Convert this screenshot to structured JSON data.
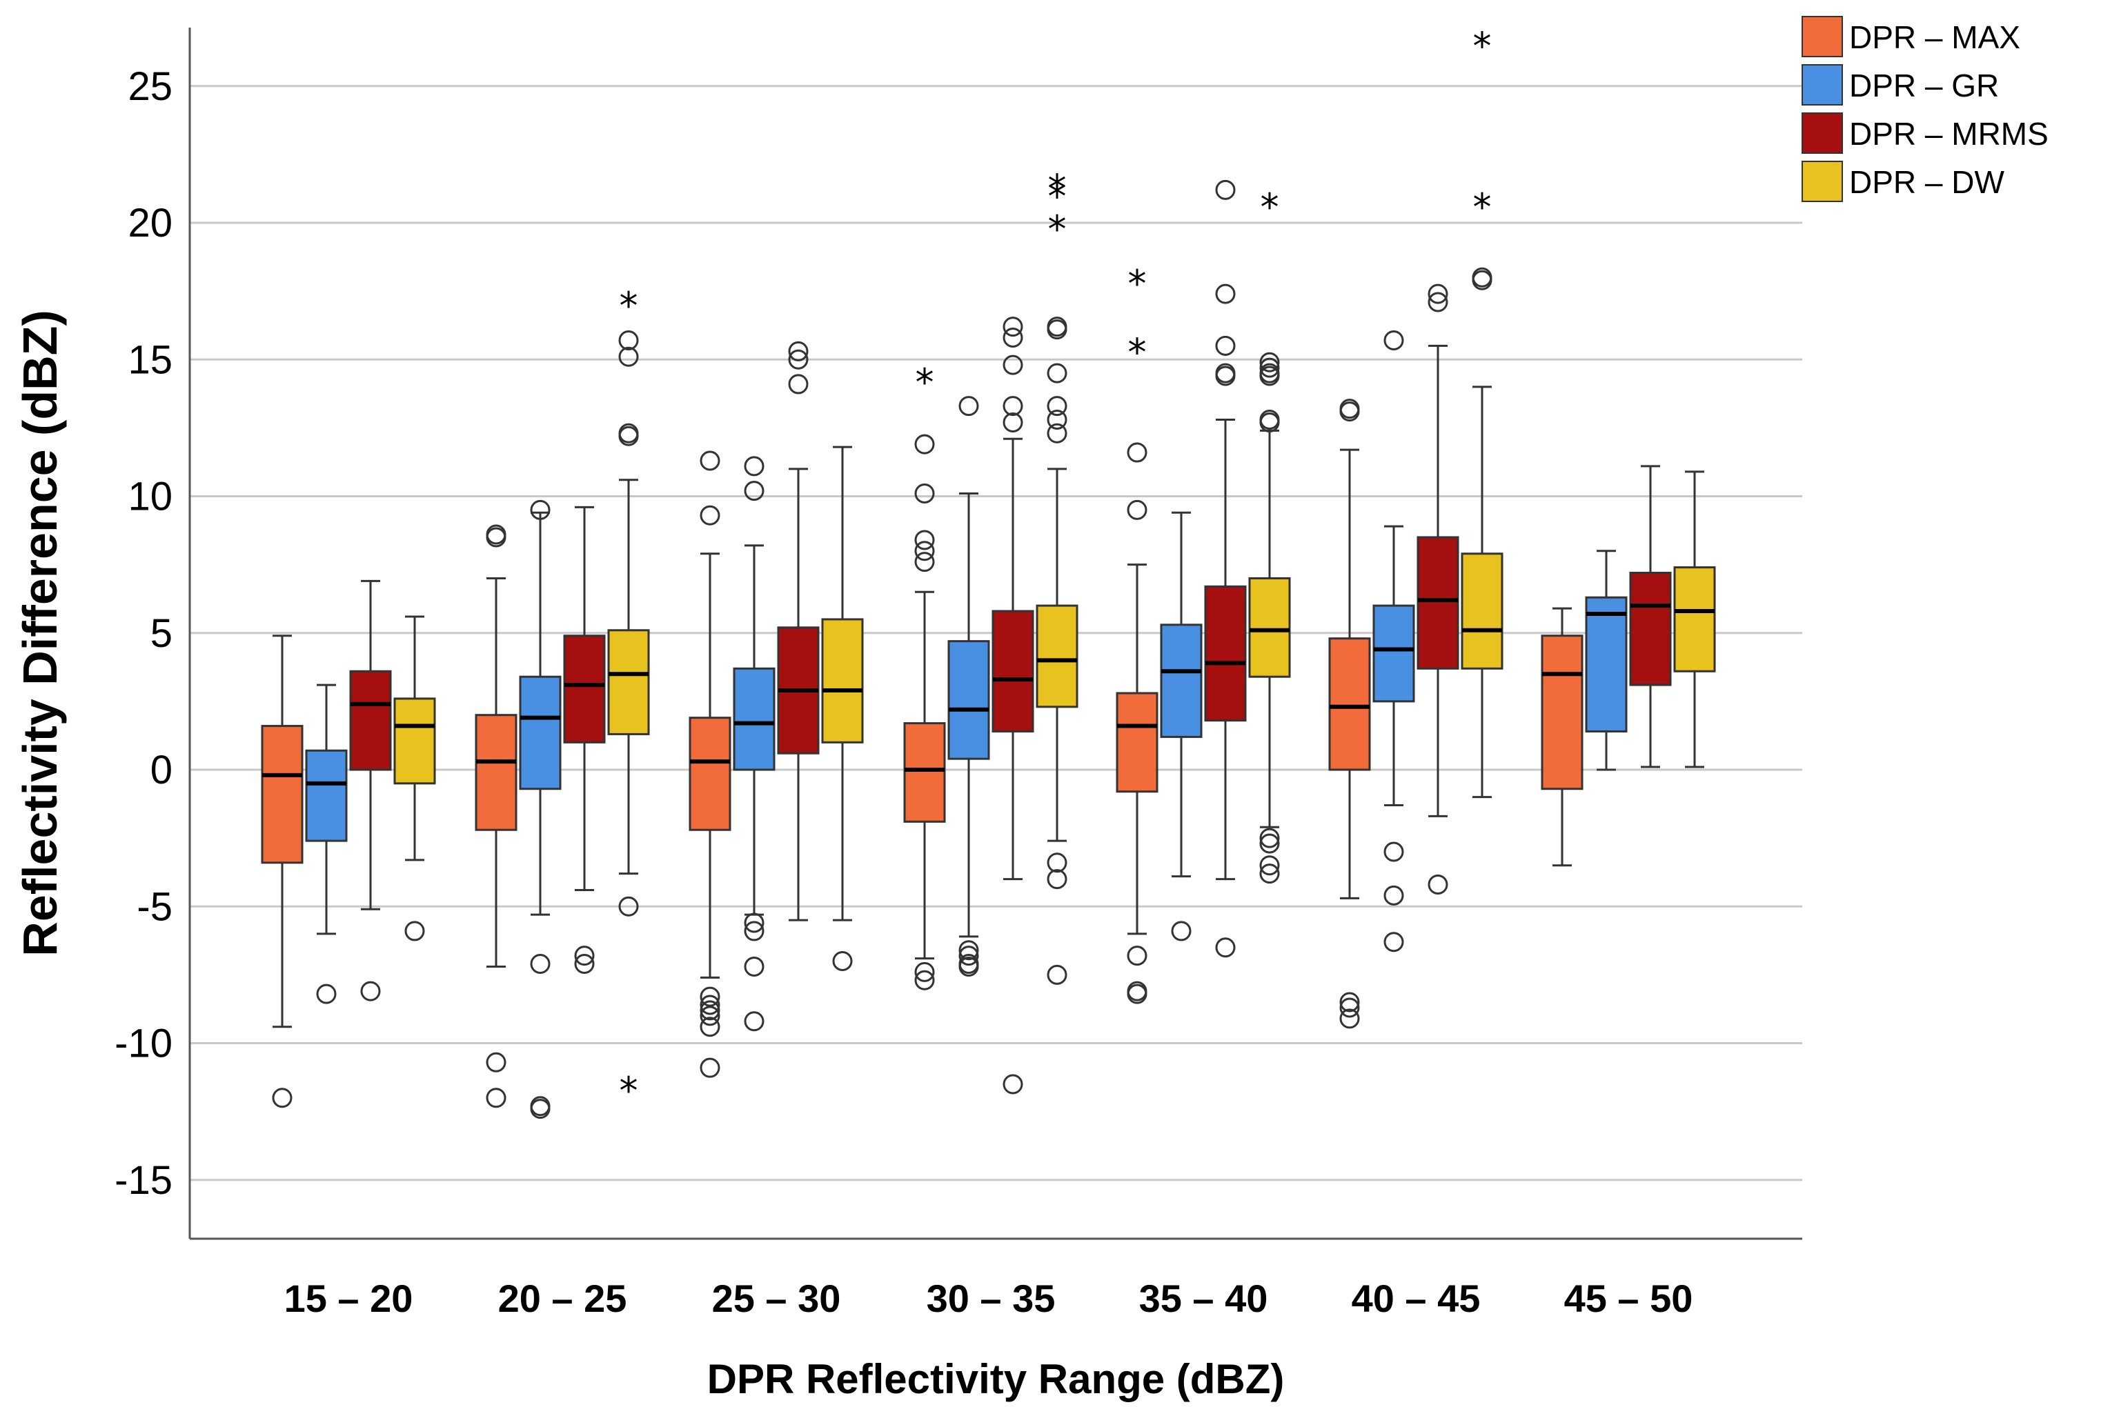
{
  "chart_data": {
    "type": "boxplot",
    "title": "",
    "xlabel": "DPR Reflectivity Range (dBZ)",
    "ylabel": "Reflectivity Difference (dBZ)",
    "ylim": [
      -17.2,
      27.2
    ],
    "yticks": [
      25,
      20,
      15,
      10,
      5,
      0,
      -5,
      -10,
      -15
    ],
    "ytick_labels": [
      "25",
      "20",
      "15",
      "10",
      "5",
      "0",
      "-5",
      "-10",
      "-15"
    ],
    "grid": "horizontal",
    "legend_position": "top-right",
    "categories": [
      "15 – 20",
      "20 – 25",
      "25 – 30",
      "30 – 35",
      "35 – 40",
      "40 – 45",
      "45 – 50"
    ],
    "series": [
      {
        "name": "DPR – MAX",
        "color": "#F26B3A",
        "boxes": [
          {
            "whisker_low": -9.4,
            "q1": -3.4,
            "median": -0.2,
            "q3": 1.6,
            "whisker_high": 4.9,
            "outliers": [
              -12
            ],
            "extremes": []
          },
          {
            "whisker_low": -7.2,
            "q1": -2.2,
            "median": 0.3,
            "q3": 2.0,
            "whisker_high": 7.0,
            "outliers": [
              8.6,
              8.5,
              -10.7,
              -12
            ],
            "extremes": []
          },
          {
            "whisker_low": -7.6,
            "q1": -2.2,
            "median": 0.3,
            "q3": 1.9,
            "whisker_high": 7.9,
            "outliers": [
              11.3,
              9.3,
              -8.3,
              -8.6,
              -8.8,
              -9.0,
              -9.4,
              -10.9
            ],
            "extremes": []
          },
          {
            "whisker_low": -6.9,
            "q1": -1.9,
            "median": 0.0,
            "q3": 1.7,
            "whisker_high": 6.5,
            "outliers": [
              11.9,
              10.1,
              8.4,
              8.0,
              7.6,
              -7.4,
              -7.7
            ],
            "extremes": [
              14.2
            ]
          },
          {
            "whisker_low": -6.0,
            "q1": -0.8,
            "median": 1.6,
            "q3": 2.8,
            "whisker_high": 7.5,
            "outliers": [
              11.6,
              9.5,
              -6.8,
              -8.1,
              -8.2
            ],
            "extremes": [
              17.8,
              15.3
            ]
          },
          {
            "whisker_low": -4.7,
            "q1": 0.0,
            "median": 2.3,
            "q3": 4.8,
            "whisker_high": 11.7,
            "outliers": [
              13.2,
              13.1,
              -8.5,
              -8.7,
              -9.1
            ],
            "extremes": []
          },
          {
            "whisker_low": -3.5,
            "q1": -0.7,
            "median": 3.5,
            "q3": 4.9,
            "whisker_high": 5.9,
            "outliers": [],
            "extremes": []
          }
        ]
      },
      {
        "name": "DPR – GR",
        "color": "#4A90E2",
        "boxes": [
          {
            "whisker_low": -6.0,
            "q1": -2.6,
            "median": -0.5,
            "q3": 0.7,
            "whisker_high": 3.1,
            "outliers": [
              -8.2
            ],
            "extremes": []
          },
          {
            "whisker_low": -5.3,
            "q1": -0.7,
            "median": 1.9,
            "q3": 3.4,
            "whisker_high": 9.4,
            "outliers": [
              9.5,
              -7.1,
              -12.3,
              -12.4
            ],
            "extremes": []
          },
          {
            "whisker_low": -5.3,
            "q1": 0.0,
            "median": 1.7,
            "q3": 3.7,
            "whisker_high": 8.2,
            "outliers": [
              11.1,
              10.2,
              -5.6,
              -5.9,
              -7.2,
              -9.2
            ],
            "extremes": []
          },
          {
            "whisker_low": -6.1,
            "q1": 0.4,
            "median": 2.2,
            "q3": 4.7,
            "whisker_high": 10.1,
            "outliers": [
              13.3,
              -6.6,
              -6.8,
              -7.1,
              -7.2
            ],
            "extremes": []
          },
          {
            "whisker_low": -3.9,
            "q1": 1.2,
            "median": 3.6,
            "q3": 5.3,
            "whisker_high": 9.4,
            "outliers": [
              -5.9
            ],
            "extremes": []
          },
          {
            "whisker_low": -1.3,
            "q1": 2.5,
            "median": 4.4,
            "q3": 6.0,
            "whisker_high": 8.9,
            "outliers": [
              15.7,
              -3.0,
              -4.6,
              -6.3
            ],
            "extremes": []
          },
          {
            "whisker_low": 0.0,
            "q1": 1.4,
            "median": 5.7,
            "q3": 6.3,
            "whisker_high": 8.0,
            "outliers": [],
            "extremes": []
          }
        ]
      },
      {
        "name": "DPR – MRMS",
        "color": "#A50F0F",
        "boxes": [
          {
            "whisker_low": -5.1,
            "q1": 0.0,
            "median": 2.4,
            "q3": 3.6,
            "whisker_high": 6.9,
            "outliers": [
              -8.1
            ],
            "extremes": []
          },
          {
            "whisker_low": -4.4,
            "q1": 1.0,
            "median": 3.1,
            "q3": 4.9,
            "whisker_high": 9.6,
            "outliers": [
              -6.8,
              -7.1
            ],
            "extremes": []
          },
          {
            "whisker_low": -5.5,
            "q1": 0.6,
            "median": 2.9,
            "q3": 5.2,
            "whisker_high": 11.0,
            "outliers": [
              15.3,
              15.0,
              14.1
            ],
            "extremes": []
          },
          {
            "whisker_low": -4.0,
            "q1": 1.4,
            "median": 3.3,
            "q3": 5.8,
            "whisker_high": 12.1,
            "outliers": [
              16.2,
              15.8,
              14.8,
              13.3,
              12.7,
              -11.5
            ],
            "extremes": []
          },
          {
            "whisker_low": -4.0,
            "q1": 1.8,
            "median": 3.9,
            "q3": 6.7,
            "whisker_high": 12.8,
            "outliers": [
              21.2,
              17.4,
              15.5,
              14.5,
              14.4,
              -6.5
            ],
            "extremes": []
          },
          {
            "whisker_low": -1.7,
            "q1": 3.7,
            "median": 6.2,
            "q3": 8.5,
            "whisker_high": 15.5,
            "outliers": [
              17.4,
              17.1,
              -4.2
            ],
            "extremes": []
          },
          {
            "whisker_low": 0.1,
            "q1": 3.1,
            "median": 6.0,
            "q3": 7.2,
            "whisker_high": 11.1,
            "outliers": [],
            "extremes": []
          }
        ]
      },
      {
        "name": "DPR – DW",
        "color": "#E8C21E",
        "boxes": [
          {
            "whisker_low": -3.3,
            "q1": -0.5,
            "median": 1.6,
            "q3": 2.6,
            "whisker_high": 5.6,
            "outliers": [
              -5.9
            ],
            "extremes": []
          },
          {
            "whisker_low": -3.8,
            "q1": 1.3,
            "median": 3.5,
            "q3": 5.1,
            "whisker_high": 10.6,
            "outliers": [
              15.7,
              15.1,
              12.3,
              12.2,
              -5.0
            ],
            "extremes": [
              17.0,
              -11.7
            ]
          },
          {
            "whisker_low": -5.5,
            "q1": 1.0,
            "median": 2.9,
            "q3": 5.5,
            "whisker_high": 11.8,
            "outliers": [
              -7.0
            ],
            "extremes": []
          },
          {
            "whisker_low": -2.6,
            "q1": 2.3,
            "median": 4.0,
            "q3": 6.0,
            "whisker_high": 11.0,
            "outliers": [
              16.2,
              16.1,
              14.5,
              13.3,
              12.8,
              12.3,
              -3.4,
              -4.0,
              -7.5
            ],
            "extremes": [
              21.3,
              21.0,
              19.8
            ]
          },
          {
            "whisker_low": -2.1,
            "q1": 3.4,
            "median": 5.1,
            "q3": 7.0,
            "whisker_high": 12.4,
            "outliers": [
              14.9,
              14.7,
              14.5,
              14.4,
              12.8,
              12.7,
              -2.5,
              -2.7,
              -3.5,
              -3.8
            ],
            "extremes": [
              20.6
            ]
          },
          {
            "whisker_low": -1.0,
            "q1": 3.7,
            "median": 5.1,
            "q3": 7.9,
            "whisker_high": 14.0,
            "outliers": [
              18.0,
              17.9
            ],
            "extremes": [
              26.5,
              20.6
            ]
          },
          {
            "whisker_low": 0.1,
            "q1": 3.6,
            "median": 5.8,
            "q3": 7.4,
            "whisker_high": 10.9,
            "outliers": [],
            "extremes": []
          }
        ]
      }
    ]
  }
}
